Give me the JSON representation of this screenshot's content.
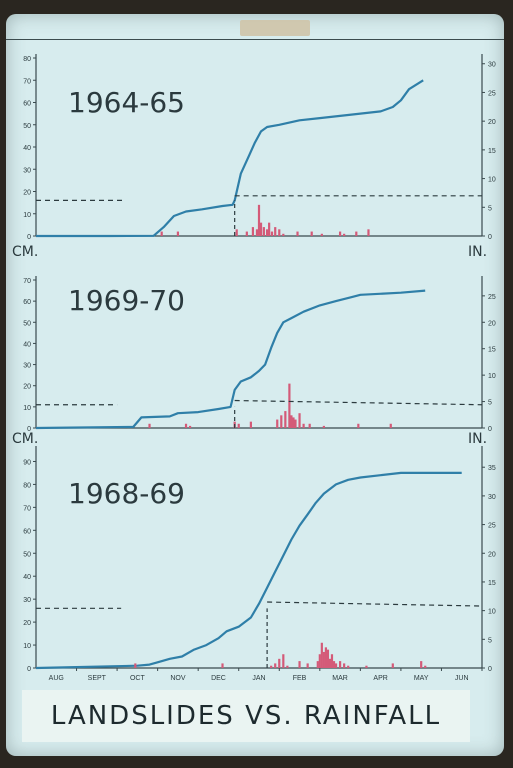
{
  "colors": {
    "line": "#2f7fa8",
    "bar": "#d45a78",
    "axis": "#3a4a4e",
    "text": "#2b3a3e",
    "background": "#d7ecee"
  },
  "title": "LANDSLIDES VS. RAINFALL",
  "chart_data": [
    {
      "type": "line",
      "title": "1964-65",
      "ylabel": "",
      "y2label": "",
      "ylim": [
        0,
        80
      ],
      "y2lim": [
        0,
        31
      ],
      "yticks": [
        0,
        10,
        20,
        30,
        40,
        50,
        60,
        70,
        80
      ],
      "y2ticks": [
        0,
        5,
        10,
        15,
        20,
        25,
        30
      ],
      "xlim": [
        0,
        11
      ],
      "series": [
        {
          "kind": "cumulative-rainfall-line",
          "points": [
            [
              0,
              0
            ],
            [
              1.8,
              0
            ],
            [
              2.9,
              0.1
            ],
            [
              3.15,
              4
            ],
            [
              3.4,
              9
            ],
            [
              3.7,
              11
            ],
            [
              4.1,
              12
            ],
            [
              4.6,
              13.5
            ],
            [
              4.85,
              14
            ],
            [
              4.9,
              16
            ],
            [
              5.05,
              28
            ],
            [
              5.25,
              36
            ],
            [
              5.4,
              42
            ],
            [
              5.55,
              47
            ],
            [
              5.7,
              49
            ],
            [
              6.0,
              50
            ],
            [
              6.5,
              52
            ],
            [
              7.0,
              53
            ],
            [
              8.0,
              55
            ],
            [
              8.5,
              56
            ],
            [
              8.8,
              58
            ],
            [
              9.0,
              61
            ],
            [
              9.2,
              66
            ],
            [
              9.55,
              70
            ]
          ]
        },
        {
          "kind": "daily-rainfall-bars",
          "points": [
            [
              3.1,
              2
            ],
            [
              3.5,
              2
            ],
            [
              4.95,
              3
            ],
            [
              5.2,
              2
            ],
            [
              5.35,
              4
            ],
            [
              5.45,
              3
            ],
            [
              5.5,
              14
            ],
            [
              5.55,
              6
            ],
            [
              5.62,
              4
            ],
            [
              5.7,
              3
            ],
            [
              5.75,
              6
            ],
            [
              5.82,
              2
            ],
            [
              5.9,
              4
            ],
            [
              6.0,
              3
            ],
            [
              6.1,
              1
            ],
            [
              6.45,
              2
            ],
            [
              6.8,
              2
            ],
            [
              7.05,
              1
            ],
            [
              7.5,
              2
            ],
            [
              7.6,
              1
            ],
            [
              7.9,
              2
            ],
            [
              8.2,
              3
            ]
          ]
        },
        {
          "kind": "threshold-dashed",
          "points": [
            [
              0,
              16
            ],
            [
              2.2,
              16
            ]
          ]
        },
        {
          "kind": "threshold-dashed",
          "points": [
            [
              4.9,
              7
            ],
            [
              11,
              7
            ]
          ],
          "axis": "y2"
        },
        {
          "kind": "landslide-start-marker",
          "points": [
            [
              4.9,
              0
            ],
            [
              4.9,
              16
            ]
          ]
        }
      ]
    },
    {
      "type": "line",
      "title": "1969-70",
      "ylabel": "CM.",
      "y2label": "IN.",
      "ylim": [
        0,
        70
      ],
      "y2lim": [
        0,
        28
      ],
      "yticks": [
        0,
        10,
        20,
        30,
        40,
        50,
        60,
        70
      ],
      "y2ticks": [
        0,
        5,
        10,
        15,
        20,
        25
      ],
      "xlim": [
        0,
        11
      ],
      "series": [
        {
          "kind": "cumulative-rainfall-line",
          "points": [
            [
              0,
              0
            ],
            [
              2.4,
              0.5
            ],
            [
              2.6,
              5
            ],
            [
              3.3,
              5.5
            ],
            [
              3.5,
              7
            ],
            [
              4.0,
              7.5
            ],
            [
              4.5,
              9
            ],
            [
              4.8,
              10
            ],
            [
              4.9,
              18
            ],
            [
              5.05,
              22
            ],
            [
              5.3,
              24
            ],
            [
              5.5,
              27
            ],
            [
              5.65,
              30
            ],
            [
              5.8,
              38
            ],
            [
              5.95,
              45
            ],
            [
              6.1,
              50
            ],
            [
              6.3,
              52
            ],
            [
              6.6,
              55
            ],
            [
              7.0,
              58
            ],
            [
              7.4,
              60
            ],
            [
              7.8,
              62
            ],
            [
              8.0,
              63
            ],
            [
              9.0,
              64
            ],
            [
              9.6,
              65
            ]
          ]
        },
        {
          "kind": "daily-rainfall-bars",
          "points": [
            [
              2.8,
              2
            ],
            [
              3.7,
              2
            ],
            [
              3.8,
              1
            ],
            [
              4.9,
              3
            ],
            [
              5.0,
              2
            ],
            [
              5.3,
              3
            ],
            [
              5.95,
              4
            ],
            [
              6.05,
              6
            ],
            [
              6.15,
              8
            ],
            [
              6.25,
              21
            ],
            [
              6.3,
              6
            ],
            [
              6.35,
              5
            ],
            [
              6.4,
              4
            ],
            [
              6.5,
              7
            ],
            [
              6.6,
              2
            ],
            [
              6.75,
              2
            ],
            [
              7.1,
              1
            ],
            [
              7.95,
              2
            ],
            [
              8.75,
              2
            ]
          ]
        },
        {
          "kind": "threshold-dashed",
          "points": [
            [
              0,
              11
            ],
            [
              2.0,
              11
            ]
          ]
        },
        {
          "kind": "threshold-dashed",
          "points": [
            [
              4.9,
              5.2
            ],
            [
              11,
              4.4
            ]
          ],
          "axis": "y2"
        },
        {
          "kind": "landslide-start-marker",
          "points": [
            [
              4.9,
              0
            ],
            [
              4.9,
              10
            ]
          ]
        }
      ]
    },
    {
      "type": "line",
      "title": "1968-69",
      "ylabel": "CM.",
      "y2label": "IN.",
      "ylim": [
        0,
        95
      ],
      "y2lim": [
        0,
        38
      ],
      "yticks": [
        0,
        10,
        20,
        30,
        40,
        50,
        60,
        70,
        80,
        90
      ],
      "y2ticks": [
        0,
        5,
        10,
        15,
        20,
        25,
        30,
        35
      ],
      "xlim": [
        0,
        11
      ],
      "xticks": [
        "AUG",
        "SEPT",
        "OCT",
        "NOV",
        "DEC",
        "JAN",
        "FEB",
        "MAR",
        "APR",
        "MAY",
        "JUN"
      ],
      "series": [
        {
          "kind": "cumulative-rainfall-line",
          "points": [
            [
              0,
              0
            ],
            [
              2.5,
              1
            ],
            [
              2.8,
              1.5
            ],
            [
              3.0,
              2.5
            ],
            [
              3.3,
              4
            ],
            [
              3.6,
              5
            ],
            [
              3.9,
              8
            ],
            [
              4.2,
              10
            ],
            [
              4.5,
              13
            ],
            [
              4.7,
              16
            ],
            [
              5.0,
              18
            ],
            [
              5.3,
              22
            ],
            [
              5.5,
              28
            ],
            [
              5.7,
              35
            ],
            [
              5.9,
              42
            ],
            [
              6.1,
              49
            ],
            [
              6.3,
              56
            ],
            [
              6.5,
              62
            ],
            [
              6.7,
              67
            ],
            [
              6.9,
              72
            ],
            [
              7.1,
              76
            ],
            [
              7.4,
              80
            ],
            [
              7.7,
              82
            ],
            [
              8.0,
              83
            ],
            [
              8.5,
              84
            ],
            [
              9.0,
              85
            ],
            [
              10.0,
              85
            ],
            [
              10.5,
              85
            ]
          ]
        },
        {
          "kind": "daily-rainfall-bars",
          "points": [
            [
              2.45,
              2
            ],
            [
              4.6,
              2
            ],
            [
              5.8,
              1
            ],
            [
              5.9,
              2
            ],
            [
              6.0,
              4
            ],
            [
              6.1,
              6
            ],
            [
              6.2,
              1
            ],
            [
              6.5,
              3
            ],
            [
              6.7,
              2
            ],
            [
              6.95,
              3
            ],
            [
              7.0,
              6
            ],
            [
              7.05,
              11
            ],
            [
              7.1,
              7
            ],
            [
              7.15,
              9
            ],
            [
              7.2,
              8
            ],
            [
              7.25,
              4
            ],
            [
              7.3,
              6
            ],
            [
              7.35,
              3
            ],
            [
              7.4,
              2
            ],
            [
              7.5,
              3
            ],
            [
              7.6,
              2
            ],
            [
              7.7,
              1
            ],
            [
              8.15,
              1
            ],
            [
              8.8,
              2
            ],
            [
              9.5,
              3
            ],
            [
              9.6,
              1
            ]
          ]
        },
        {
          "kind": "threshold-dashed",
          "points": [
            [
              0,
              26
            ],
            [
              2.1,
              26
            ]
          ]
        },
        {
          "kind": "threshold-dashed",
          "points": [
            [
              5.7,
              11.5
            ],
            [
              11,
              10.8
            ]
          ],
          "axis": "y2"
        },
        {
          "kind": "landslide-start-marker",
          "points": [
            [
              5.7,
              0
            ],
            [
              5.7,
              26
            ]
          ]
        }
      ]
    }
  ]
}
